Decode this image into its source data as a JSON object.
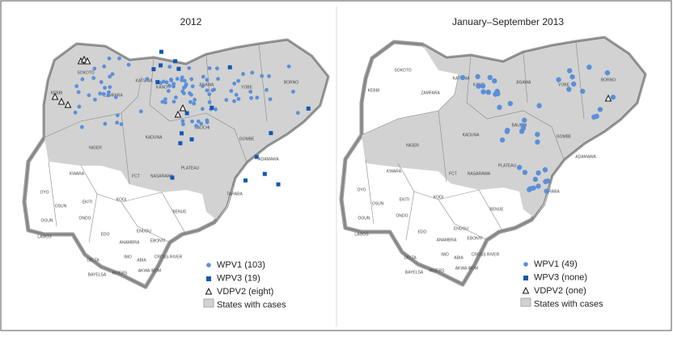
{
  "panels": [
    {
      "title": "2012",
      "legend": [
        "WPV1 (103)",
        "WPV3 (19)",
        "VDPV2 (eight)",
        "States with cases"
      ]
    },
    {
      "title": "January–September 2013",
      "legend": [
        "WPV1 (49)",
        "WPV3 (none)",
        "VDPV2 (one)",
        "States with cases"
      ]
    }
  ],
  "states": [
    "SOKOTO",
    "KEBBI",
    "ZAMFARA",
    "KATSINA",
    "KANO",
    "JIGAWA",
    "YOBE",
    "BORNO",
    "KADUNA",
    "BAUCHI",
    "GOMBE",
    "ADAMAWA",
    "NIGER",
    "FCT",
    "NASARAWA",
    "PLATEAU",
    "TARABA",
    "KWARA",
    "KOGI",
    "BENUE",
    "OYO",
    "OSUN",
    "EKITI",
    "ONDO",
    "OGUN",
    "LAGOS",
    "EDO",
    "ENUGU",
    "EBONYI",
    "ANAMBRA",
    "DELTA",
    "IMO",
    "ABIA",
    "CROSS RIVER",
    "BAYELSA",
    "RIVERS",
    "AKWA IBOM"
  ]
}
